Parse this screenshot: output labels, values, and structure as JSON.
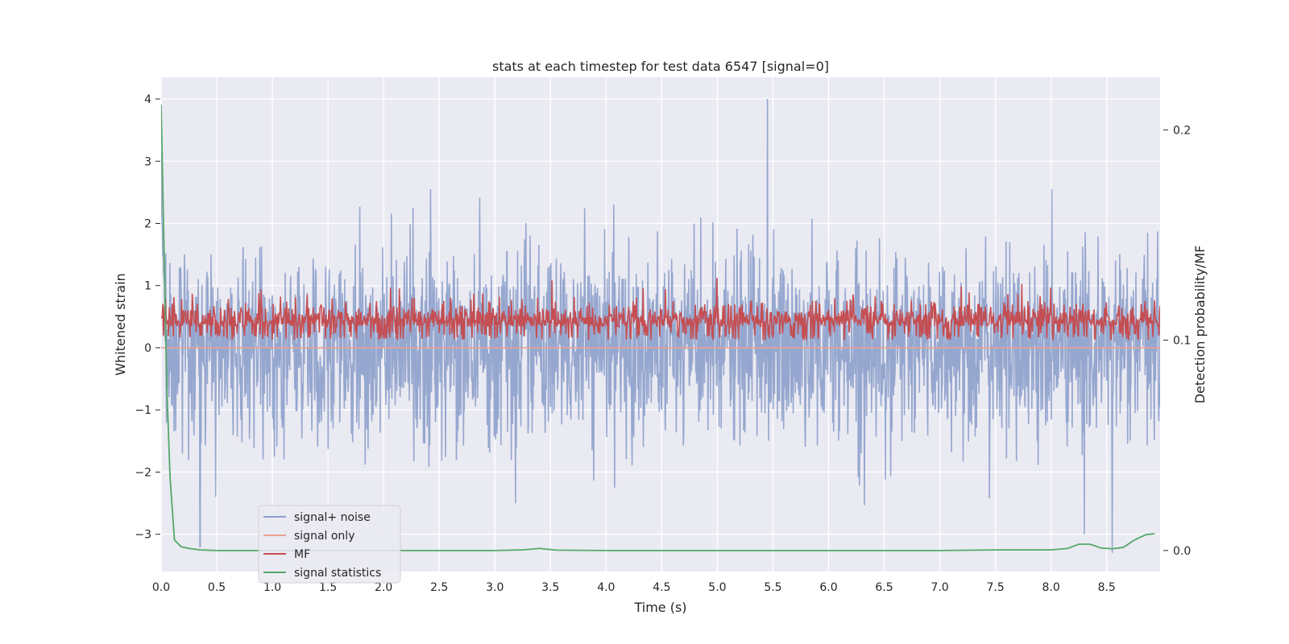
{
  "chart_data": {
    "type": "line",
    "title": "stats at each timestep for test data 6547 [signal=0]",
    "xlabel": "Time (s)",
    "ylabel": "Whitened strain",
    "y2label": "Detection probability/MF",
    "xlim": [
      0,
      8.98
    ],
    "ylim": [
      -3.6,
      4.35
    ],
    "y2lim": [
      -0.01,
      0.225
    ],
    "x_ticks": [
      0.0,
      0.5,
      1.0,
      1.5,
      2.0,
      2.5,
      3.0,
      3.5,
      4.0,
      4.5,
      5.0,
      5.5,
      6.0,
      6.5,
      7.0,
      7.5,
      8.0,
      8.5
    ],
    "x_tick_labels": [
      "0.0",
      "0.5",
      "1.0",
      "1.5",
      "2.0",
      "2.5",
      "3.0",
      "3.5",
      "4.0",
      "4.5",
      "5.0",
      "5.5",
      "6.0",
      "6.5",
      "7.0",
      "7.5",
      "8.0",
      "8.5"
    ],
    "y_ticks": [
      -3,
      -2,
      -1,
      0,
      1,
      2,
      3,
      4
    ],
    "y_tick_labels": [
      "−3",
      "−2",
      "−1",
      "0",
      "1",
      "2",
      "3",
      "4"
    ],
    "y2_ticks": [
      0.0,
      0.1,
      0.2
    ],
    "y2_tick_labels": [
      "0.0",
      "0.1",
      "0.2"
    ],
    "grid": true,
    "legend_position": "lower-left",
    "background": "#eaeaf2",
    "series": [
      {
        "name": "signal+ noise",
        "axis": "left",
        "color": "#8da0cb",
        "description": "dense noisy whitened strain, mostly within -2 to 2, occasional spikes",
        "summary": {
          "typical_range": [
            -2.0,
            2.0
          ],
          "notable_peaks": [
            [
              5.45,
              4.0
            ],
            [
              0.35,
              -3.2
            ],
            [
              8.55,
              -3.3
            ],
            [
              8.3,
              -3.0
            ]
          ]
        }
      },
      {
        "name": "signal only",
        "axis": "left",
        "color": "#e8a090",
        "x": [
          0,
          8.98
        ],
        "y": [
          0,
          0
        ]
      },
      {
        "name": "MF",
        "axis": "right",
        "color": "#c44e52",
        "description": "matched filter output, fluctuating between ~0.1 and ~0.13",
        "summary": {
          "typical_range": [
            0.098,
            0.13
          ]
        }
      },
      {
        "name": "signal statistics",
        "axis": "right",
        "color": "#55a868",
        "x": [
          0.0,
          0.02,
          0.05,
          0.08,
          0.12,
          0.18,
          0.25,
          0.35,
          0.5,
          1.0,
          2.0,
          3.0,
          3.25,
          3.4,
          3.55,
          4.0,
          5.0,
          6.0,
          7.0,
          7.5,
          7.8,
          8.0,
          8.15,
          8.25,
          8.35,
          8.45,
          8.55,
          8.65,
          8.75,
          8.85,
          8.93
        ],
        "y": [
          0.212,
          0.16,
          0.08,
          0.035,
          0.005,
          0.0018,
          0.001,
          0.0003,
          0.0,
          0.0,
          0.0,
          0.0,
          0.0003,
          0.001,
          0.0002,
          0.0,
          0.0,
          0.0,
          0.0,
          0.0003,
          0.0003,
          0.0003,
          0.001,
          0.003,
          0.003,
          0.0012,
          0.0008,
          0.0015,
          0.005,
          0.0075,
          0.008
        ]
      }
    ]
  }
}
